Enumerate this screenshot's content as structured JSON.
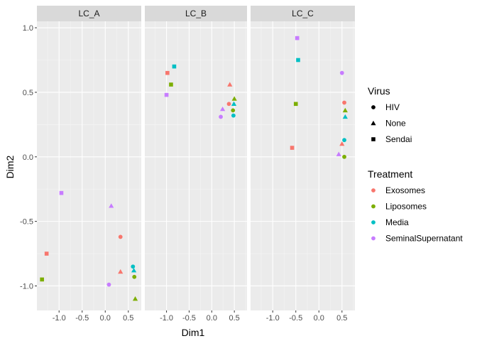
{
  "chart_data": {
    "type": "scatter",
    "xlabel": "Dim1",
    "ylabel": "Dim2",
    "xlim": [
      -1.48,
      0.78
    ],
    "ylim": [
      -1.19,
      1.05
    ],
    "x_ticks": [
      -1.0,
      -0.5,
      0.0,
      0.5
    ],
    "x_tick_labels": [
      "-1.0",
      "-0.5",
      "0.0",
      "0.5"
    ],
    "y_ticks": [
      -1.0,
      -0.5,
      0.0,
      0.5,
      1.0
    ],
    "y_tick_labels": [
      "-1.0",
      "-0.5",
      "0.0",
      "0.5",
      "1.0"
    ],
    "grid": true,
    "facets": [
      "LC_A",
      "LC_B",
      "LC_C"
    ],
    "legend_position": "right",
    "legends": {
      "shape": {
        "title": "Virus",
        "items": [
          {
            "label": "HIV",
            "shape": "circle"
          },
          {
            "label": "None",
            "shape": "triangle"
          },
          {
            "label": "Sendai",
            "shape": "square"
          }
        ]
      },
      "color": {
        "title": "Treatment",
        "items": [
          {
            "label": "Exosomes",
            "color": "#F8766D"
          },
          {
            "label": "Liposomes",
            "color": "#7CAE00"
          },
          {
            "label": "Media",
            "color": "#00BFC4"
          },
          {
            "label": "SeminalSupernatant",
            "color": "#C77CFF"
          }
        ]
      }
    },
    "points": [
      {
        "facet": "LC_A",
        "virus": "HIV",
        "treatment": "Exosomes",
        "x": 0.33,
        "y": -0.62
      },
      {
        "facet": "LC_A",
        "virus": "HIV",
        "treatment": "Liposomes",
        "x": 0.63,
        "y": -0.93
      },
      {
        "facet": "LC_A",
        "virus": "HIV",
        "treatment": "Media",
        "x": 0.6,
        "y": -0.85
      },
      {
        "facet": "LC_A",
        "virus": "HIV",
        "treatment": "SeminalSupernatant",
        "x": 0.08,
        "y": -0.99
      },
      {
        "facet": "LC_A",
        "virus": "None",
        "treatment": "Exosomes",
        "x": 0.33,
        "y": -0.89
      },
      {
        "facet": "LC_A",
        "virus": "None",
        "treatment": "Liposomes",
        "x": 0.65,
        "y": -1.1
      },
      {
        "facet": "LC_A",
        "virus": "None",
        "treatment": "Media",
        "x": 0.62,
        "y": -0.88
      },
      {
        "facet": "LC_A",
        "virus": "None",
        "treatment": "SeminalSupernatant",
        "x": 0.13,
        "y": -0.38
      },
      {
        "facet": "LC_A",
        "virus": "Sendai",
        "treatment": "Exosomes",
        "x": -1.27,
        "y": -0.75
      },
      {
        "facet": "LC_A",
        "virus": "Sendai",
        "treatment": "Liposomes",
        "x": -1.37,
        "y": -0.95
      },
      {
        "facet": "LC_A",
        "virus": "Sendai",
        "treatment": "SeminalSupernatant",
        "x": -0.95,
        "y": -0.28
      },
      {
        "facet": "LC_B",
        "virus": "HIV",
        "treatment": "Exosomes",
        "x": 0.38,
        "y": 0.41
      },
      {
        "facet": "LC_B",
        "virus": "HIV",
        "treatment": "Liposomes",
        "x": 0.47,
        "y": 0.36
      },
      {
        "facet": "LC_B",
        "virus": "HIV",
        "treatment": "Media",
        "x": 0.48,
        "y": 0.32
      },
      {
        "facet": "LC_B",
        "virus": "HIV",
        "treatment": "SeminalSupernatant",
        "x": 0.2,
        "y": 0.31
      },
      {
        "facet": "LC_B",
        "virus": "None",
        "treatment": "Exosomes",
        "x": 0.4,
        "y": 0.56
      },
      {
        "facet": "LC_B",
        "virus": "None",
        "treatment": "Liposomes",
        "x": 0.5,
        "y": 0.45
      },
      {
        "facet": "LC_B",
        "virus": "None",
        "treatment": "Media",
        "x": 0.49,
        "y": 0.41
      },
      {
        "facet": "LC_B",
        "virus": "None",
        "treatment": "SeminalSupernatant",
        "x": 0.24,
        "y": 0.37
      },
      {
        "facet": "LC_B",
        "virus": "Sendai",
        "treatment": "Exosomes",
        "x": -0.98,
        "y": 0.65
      },
      {
        "facet": "LC_B",
        "virus": "Sendai",
        "treatment": "Liposomes",
        "x": -0.9,
        "y": 0.56
      },
      {
        "facet": "LC_B",
        "virus": "Sendai",
        "treatment": "Media",
        "x": -0.83,
        "y": 0.7
      },
      {
        "facet": "LC_B",
        "virus": "Sendai",
        "treatment": "SeminalSupernatant",
        "x": -1.0,
        "y": 0.48
      },
      {
        "facet": "LC_C",
        "virus": "HIV",
        "treatment": "Exosomes",
        "x": 0.55,
        "y": 0.42
      },
      {
        "facet": "LC_C",
        "virus": "HIV",
        "treatment": "Liposomes",
        "x": 0.55,
        "y": 0.0
      },
      {
        "facet": "LC_C",
        "virus": "HIV",
        "treatment": "Media",
        "x": 0.55,
        "y": 0.13
      },
      {
        "facet": "LC_C",
        "virus": "HIV",
        "treatment": "SeminalSupernatant",
        "x": 0.5,
        "y": 0.65
      },
      {
        "facet": "LC_C",
        "virus": "None",
        "treatment": "Exosomes",
        "x": 0.5,
        "y": 0.1
      },
      {
        "facet": "LC_C",
        "virus": "None",
        "treatment": "Liposomes",
        "x": 0.57,
        "y": 0.36
      },
      {
        "facet": "LC_C",
        "virus": "None",
        "treatment": "Media",
        "x": 0.57,
        "y": 0.31
      },
      {
        "facet": "LC_C",
        "virus": "None",
        "treatment": "SeminalSupernatant",
        "x": 0.43,
        "y": 0.02
      },
      {
        "facet": "LC_C",
        "virus": "Sendai",
        "treatment": "Exosomes",
        "x": -0.58,
        "y": 0.07
      },
      {
        "facet": "LC_C",
        "virus": "Sendai",
        "treatment": "Liposomes",
        "x": -0.5,
        "y": 0.41
      },
      {
        "facet": "LC_C",
        "virus": "Sendai",
        "treatment": "Media",
        "x": -0.45,
        "y": 0.75
      },
      {
        "facet": "LC_C",
        "virus": "Sendai",
        "treatment": "SeminalSupernatant",
        "x": -0.47,
        "y": 0.92
      }
    ]
  }
}
